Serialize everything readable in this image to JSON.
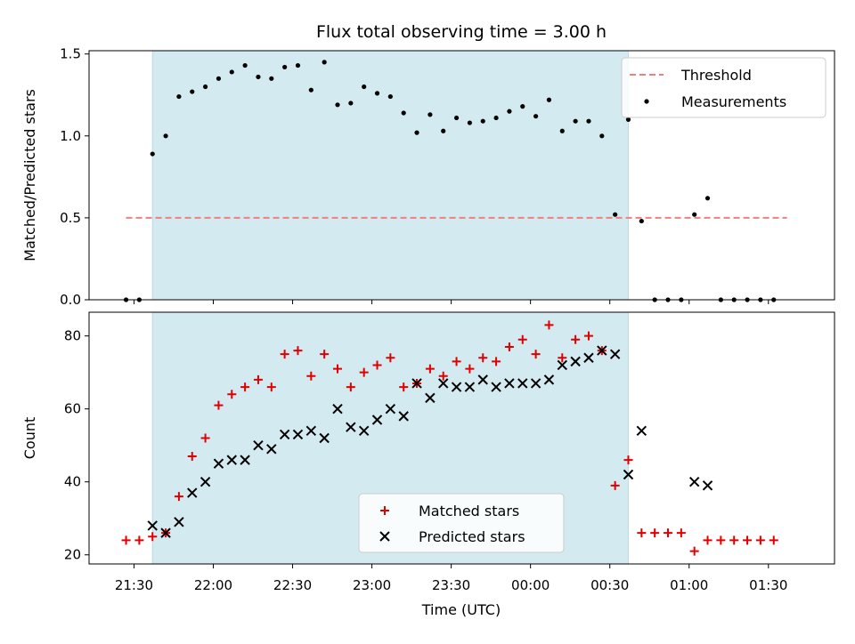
{
  "chart_data": {
    "title": "Flux total observing time = 3.00 h",
    "xlabel": "Time (UTC)",
    "x_ticks": [
      "21:30",
      "22:00",
      "22:30",
      "23:00",
      "23:30",
      "00:00",
      "00:30",
      "01:00",
      "01:30"
    ],
    "x_tick_minutes": [
      1290,
      1320,
      1350,
      1380,
      1410,
      1440,
      1470,
      1500,
      1530
    ],
    "xlim_minutes": [
      1273,
      1555
    ],
    "observing_window_minutes": [
      1297,
      1477
    ],
    "shade_color": "#d3eaf0",
    "panels": [
      {
        "type": "scatter",
        "ylabel": "Matched/Predicted stars",
        "ylim": [
          0,
          1.52
        ],
        "y_ticks": [
          0.0,
          0.5,
          1.0,
          1.5
        ],
        "y_tick_labels": [
          "0.0",
          "0.5",
          "1.0",
          "1.5"
        ],
        "legend_position": "top-right",
        "threshold": {
          "name": "Threshold",
          "value": 0.5,
          "color": "#f08080",
          "x_range_minutes": [
            1287,
            1537
          ]
        },
        "series": [
          {
            "name": "Measurements",
            "color": "#000000",
            "x_minutes": [
              1287,
              1292,
              1297,
              1302,
              1307,
              1312,
              1317,
              1322,
              1327,
              1332,
              1337,
              1342,
              1347,
              1352,
              1357,
              1362,
              1367,
              1372,
              1377,
              1382,
              1387,
              1392,
              1397,
              1402,
              1407,
              1412,
              1417,
              1422,
              1427,
              1432,
              1437,
              1442,
              1447,
              1452,
              1457,
              1462,
              1467,
              1472,
              1477,
              1482,
              1487,
              1492,
              1497,
              1502,
              1507,
              1512,
              1517,
              1522,
              1527,
              1532
            ],
            "y": [
              0.0,
              0.0,
              0.89,
              1.0,
              1.24,
              1.27,
              1.3,
              1.35,
              1.39,
              1.43,
              1.36,
              1.35,
              1.42,
              1.43,
              1.28,
              1.45,
              1.19,
              1.2,
              1.3,
              1.26,
              1.24,
              1.14,
              1.02,
              1.13,
              1.03,
              1.11,
              1.08,
              1.09,
              1.11,
              1.15,
              1.18,
              1.12,
              1.22,
              1.03,
              1.09,
              1.09,
              1.0,
              0.52,
              1.1,
              0.48,
              0.0,
              0.0,
              0.0,
              0.52,
              0.62,
              0.0,
              0.0,
              0.0,
              0.0,
              0.0
            ]
          }
        ]
      },
      {
        "type": "scatter",
        "ylabel": "Count",
        "ylim": [
          17.5,
          86.5
        ],
        "y_ticks": [
          20,
          40,
          60,
          80
        ],
        "y_tick_labels": [
          "20",
          "40",
          "60",
          "80"
        ],
        "legend_position": "lower-center",
        "series": [
          {
            "name": "Matched stars",
            "marker": "plus",
            "color": "#e00000",
            "x_minutes": [
              1287,
              1292,
              1297,
              1302,
              1307,
              1312,
              1317,
              1322,
              1327,
              1332,
              1337,
              1342,
              1347,
              1352,
              1357,
              1362,
              1367,
              1372,
              1377,
              1382,
              1387,
              1392,
              1397,
              1402,
              1407,
              1412,
              1417,
              1422,
              1427,
              1432,
              1437,
              1442,
              1447,
              1452,
              1457,
              1462,
              1467,
              1472,
              1477,
              1482,
              1487,
              1492,
              1497,
              1502,
              1507,
              1512,
              1517,
              1522,
              1527,
              1532
            ],
            "y": [
              24,
              24,
              25,
              26,
              36,
              47,
              52,
              61,
              64,
              66,
              68,
              66,
              75,
              76,
              69,
              75,
              71,
              66,
              70,
              72,
              74,
              66,
              67,
              71,
              69,
              73,
              71,
              74,
              73,
              77,
              79,
              75,
              83,
              74,
              79,
              80,
              76,
              39,
              46,
              26,
              26,
              26,
              26,
              21,
              24,
              24,
              24,
              24,
              24,
              24
            ]
          },
          {
            "name": "Predicted stars",
            "marker": "x",
            "color": "#000000",
            "x_minutes": [
              1297,
              1302,
              1307,
              1312,
              1317,
              1322,
              1327,
              1332,
              1337,
              1342,
              1347,
              1352,
              1357,
              1362,
              1367,
              1372,
              1377,
              1382,
              1387,
              1392,
              1397,
              1402,
              1407,
              1412,
              1417,
              1422,
              1427,
              1432,
              1437,
              1442,
              1447,
              1452,
              1457,
              1462,
              1467,
              1472,
              1477,
              1482,
              1502,
              1507
            ],
            "y": [
              28,
              26,
              29,
              37,
              40,
              45,
              46,
              46,
              50,
              49,
              53,
              53,
              54,
              52,
              60,
              55,
              54,
              57,
              60,
              58,
              67,
              63,
              67,
              66,
              66,
              68,
              66,
              67,
              67,
              67,
              68,
              72,
              73,
              74,
              76,
              75,
              42,
              54,
              40,
              39
            ]
          }
        ]
      }
    ]
  }
}
